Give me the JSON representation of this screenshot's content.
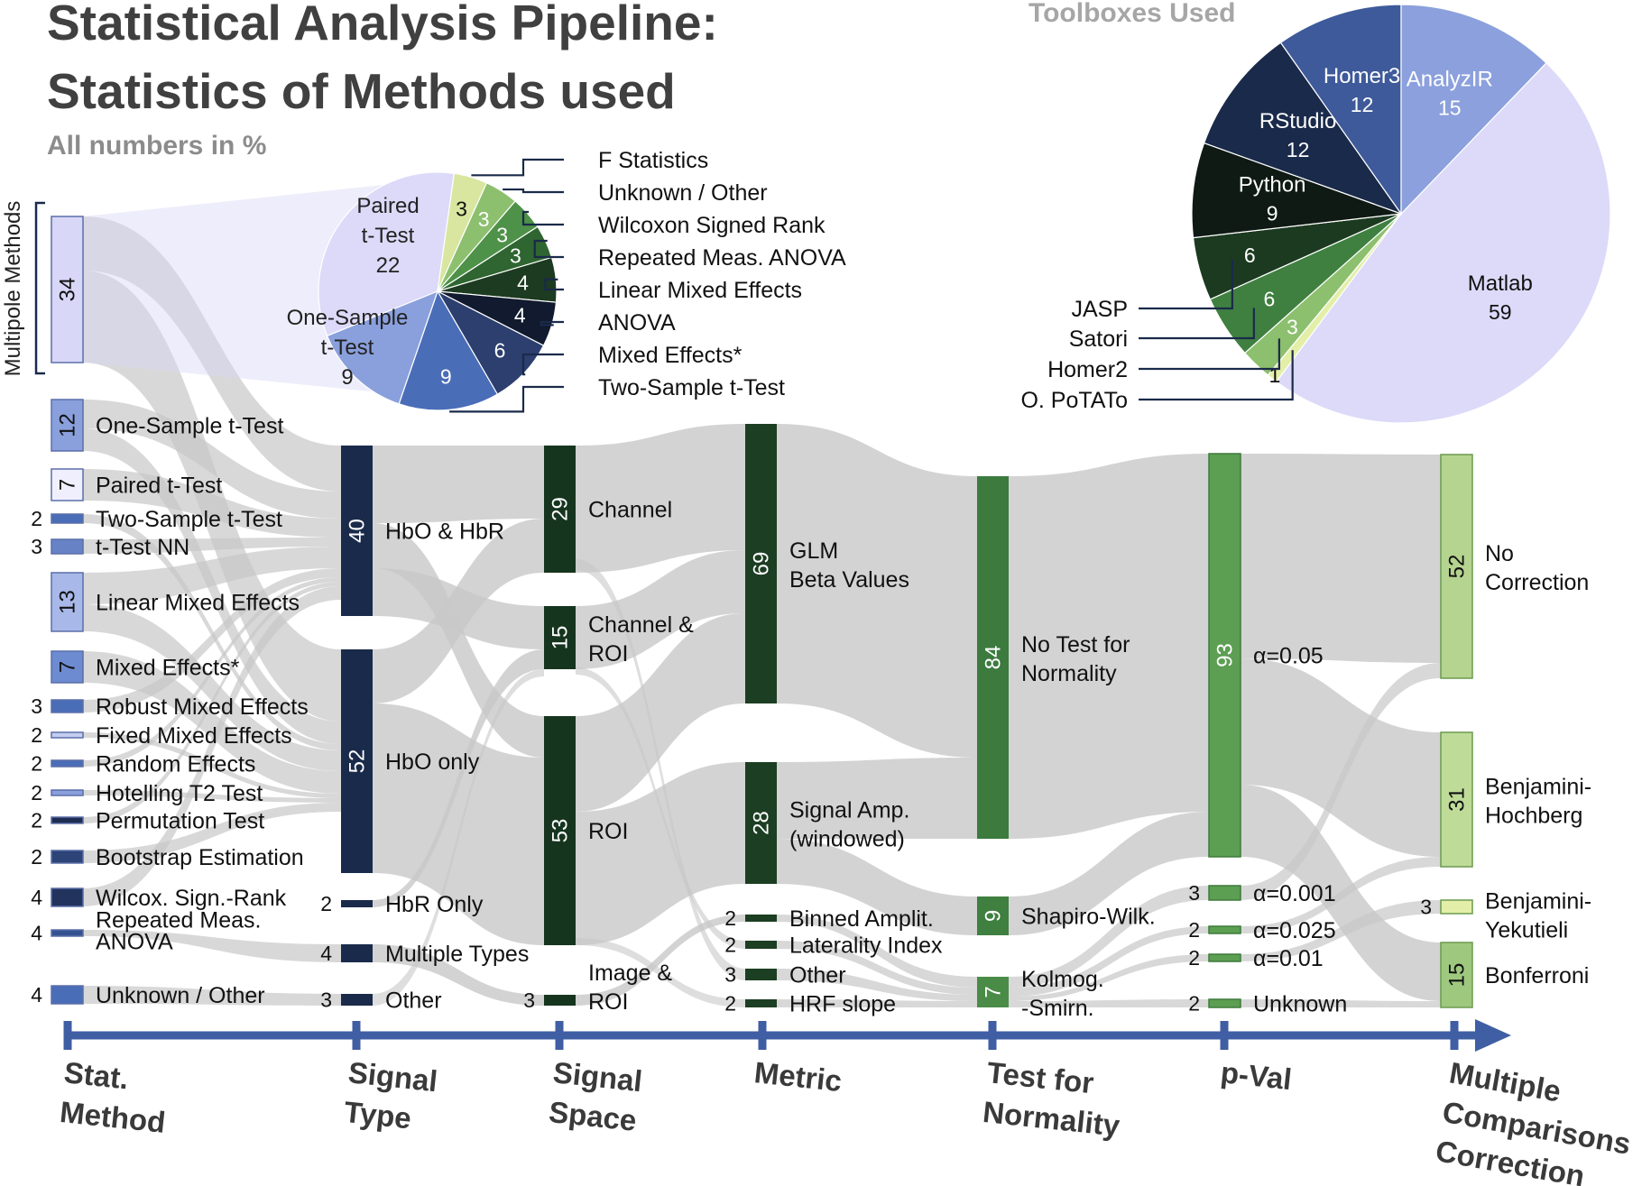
{
  "title_line1": "Statistical Analysis Pipeline:",
  "title_line2": "Statistics of Methods used",
  "subtitle": "All numbers in %",
  "multipole_label": "Multipole Methods",
  "toolboxes_title": "Toolboxes Used",
  "colors": {
    "flow": "#c8c8c8",
    "navy": "#1a2a4a",
    "dark_green": "#16351f",
    "mid_green": "#2e6b36",
    "green": "#5c9e52",
    "light_green": "#b5d48f",
    "lavender": "#d9d7f7",
    "blue": "#4a6db8",
    "axis": "#3f5ea3"
  },
  "stat_methods": [
    {
      "label": "Multipole Methods box",
      "value": "34",
      "show_value_in_bar": true
    },
    {
      "label": "One-Sample t-Test",
      "value": "12",
      "show_value_in_bar": true
    },
    {
      "label": "Paired t-Test",
      "value": "7",
      "show_value_in_bar": true
    },
    {
      "label": "Two-Sample t-Test",
      "value": "2"
    },
    {
      "label": "t-Test NN",
      "value": "3"
    },
    {
      "label": "Linear Mixed Effects",
      "value": "13",
      "show_value_in_bar": true
    },
    {
      "label": "Mixed Effects*",
      "value": "7",
      "show_value_in_bar": true
    },
    {
      "label": "Robust Mixed Effects",
      "value": "3"
    },
    {
      "label": "Fixed Mixed Effects",
      "value": "2"
    },
    {
      "label": "Random Effects",
      "value": "2"
    },
    {
      "label": "Hotelling T2 Test",
      "value": "2"
    },
    {
      "label": "Permutation Test",
      "value": "2"
    },
    {
      "label": "Bootstrap Estimation",
      "value": "2"
    },
    {
      "label": "Wilcox. Sign.-Rank",
      "value": "4"
    },
    {
      "label": "Repeated Meas.",
      "label2": "ANOVA",
      "value": "4"
    },
    {
      "label": "Unknown / Other",
      "value": "4"
    }
  ],
  "signal_type": [
    {
      "label": "HbO & HbR",
      "value": "40"
    },
    {
      "label": "HbO only",
      "value": "52"
    },
    {
      "label": "HbR Only",
      "value": "2"
    },
    {
      "label": "Multiple Types",
      "value": "4"
    },
    {
      "label": "Other",
      "value": "3"
    }
  ],
  "signal_space": [
    {
      "label": "Channel",
      "value": "29"
    },
    {
      "label": "Channel &",
      "label2": "ROI",
      "value": "15"
    },
    {
      "label": "ROI",
      "value": "53"
    },
    {
      "label": "Image &",
      "label2": "ROI",
      "value": "3"
    }
  ],
  "metric": [
    {
      "label": "GLM",
      "label2": "Beta Values",
      "value": "69"
    },
    {
      "label": "Signal Amp.",
      "label2": "(windowed)",
      "value": "28"
    },
    {
      "label": "Binned Amplit.",
      "value": "2"
    },
    {
      "label": "Laterality Index",
      "value": "2"
    },
    {
      "label": "Other",
      "value": "3"
    },
    {
      "label": "HRF slope",
      "value": "2"
    }
  ],
  "normality": [
    {
      "label": "No Test for",
      "label2": "Normality",
      "value": "84"
    },
    {
      "label": "Shapiro-Wilk.",
      "value": "9"
    },
    {
      "label": "Kolmog.",
      "label2": "-Smirn.",
      "value": "7"
    }
  ],
  "pval": [
    {
      "label": "α=0.05",
      "value": "93"
    },
    {
      "label": "α=0.001",
      "value": "3"
    },
    {
      "label": "α=0.025",
      "value": "2"
    },
    {
      "label": "α=0.01",
      "value": "2"
    },
    {
      "label": "Unknown",
      "value": "2"
    }
  ],
  "correction": [
    {
      "label": "No",
      "label2": "Correction",
      "value": "52"
    },
    {
      "label": "Benjamini-",
      "label2": "Hochberg",
      "value": "31"
    },
    {
      "label": "Benjamini-",
      "label2": "Yekutieli",
      "value": "3"
    },
    {
      "label": "Bonferroni",
      "value": "15"
    }
  ],
  "stages": [
    {
      "line1": "Stat.",
      "line2": "Method"
    },
    {
      "line1": "Signal",
      "line2": "Type"
    },
    {
      "line1": "Signal",
      "line2": "Space"
    },
    {
      "line1": "Metric",
      "line2": ""
    },
    {
      "line1": "Test for",
      "line2": "Normality"
    },
    {
      "line1": "p-Val",
      "line2": ""
    },
    {
      "line1": "Multiple",
      "line2": "Comparisons",
      "line3": "Correction"
    }
  ],
  "multipole_pie": {
    "slices": [
      {
        "label": "Paired t-Test",
        "value": 22,
        "color": "#dcdaf8",
        "text_color": "#111"
      },
      {
        "label": "F Statistics",
        "value": 3,
        "color": "#d8e6a0",
        "text_color": "#111"
      },
      {
        "label": "Unknown / Other",
        "value": 3,
        "color": "#8cbf6e",
        "text_color": "#fff"
      },
      {
        "label": "Wilcoxon Signed Rank",
        "value": 3,
        "color": "#4e9148",
        "text_color": "#fff"
      },
      {
        "label": "Repeated Meas. ANOVA",
        "value": 3,
        "color": "#2f6530",
        "text_color": "#fff"
      },
      {
        "label": "Linear Mixed Effects",
        "value": 4,
        "color": "#1d3b20",
        "text_color": "#fff"
      },
      {
        "label": "ANOVA",
        "value": 4,
        "color": "#111a2e",
        "text_color": "#fff"
      },
      {
        "label": "Mixed Effects*",
        "value": 6,
        "color": "#2c3f6f",
        "text_color": "#fff"
      },
      {
        "label": "Two-Sample t-Test",
        "value": 9,
        "color": "#4a6db8",
        "text_color": "#fff"
      },
      {
        "label": "One-Sample t-Test",
        "value": 9,
        "color": "#8aa0dc",
        "text_color": "#111"
      }
    ],
    "paired_label": [
      "Paired",
      "t-Test",
      "22"
    ],
    "onesample_label": [
      "One-Sample",
      "t-Test",
      "9"
    ]
  },
  "toolbox_pie": {
    "slices": [
      {
        "label": "Matlab",
        "value": 59,
        "color": "#dcdaf8"
      },
      {
        "label": "O. PoTATo",
        "value": 1,
        "color": "#e3eea8"
      },
      {
        "label": "Homer2",
        "value": 3,
        "color": "#8cbf6e"
      },
      {
        "label": "Satori",
        "value": 6,
        "color": "#3f8040"
      },
      {
        "label": "JASP",
        "value": 6,
        "color": "#1c3a20"
      },
      {
        "label": "Python",
        "value": 9,
        "color": "#0f1a14"
      },
      {
        "label": "RStudio",
        "value": 12,
        "color": "#1a2a4a"
      },
      {
        "label": "Homer3",
        "value": 12,
        "color": "#3e5a9a"
      },
      {
        "label": "AnalyzIR",
        "value": 15,
        "color": "#8ba0dc"
      }
    ]
  }
}
